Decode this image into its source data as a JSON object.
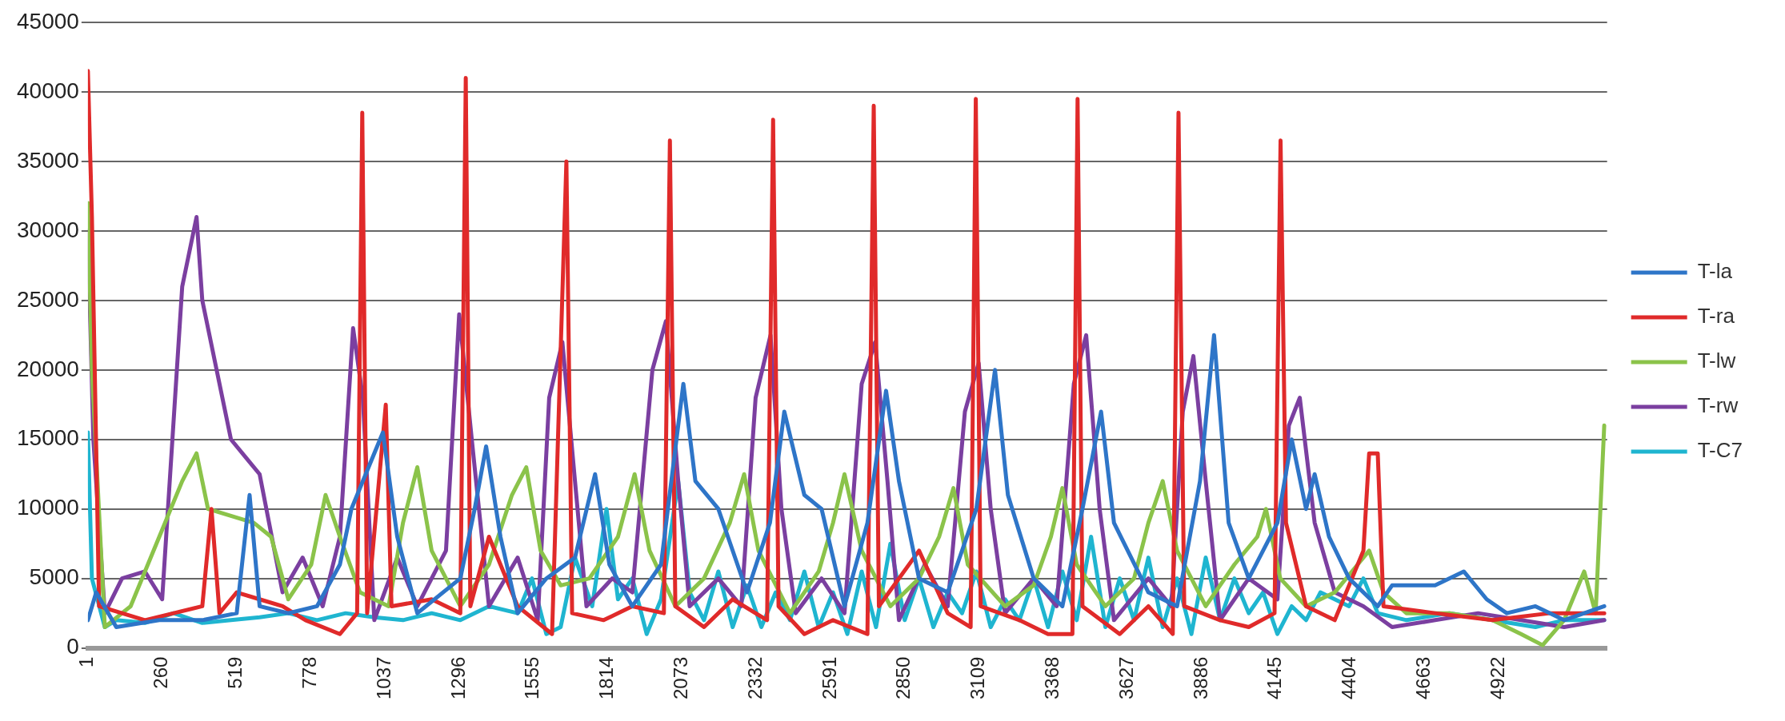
{
  "chart_data": {
    "type": "line",
    "xlim": [
      1,
      5300
    ],
    "xticks": [
      1,
      260,
      519,
      778,
      1037,
      1296,
      1555,
      1814,
      2073,
      2332,
      2591,
      2850,
      3109,
      3368,
      3627,
      3886,
      4145,
      4404,
      4663,
      4922
    ],
    "ylim": [
      0,
      45000
    ],
    "yticks": [
      0,
      5000,
      10000,
      15000,
      20000,
      25000,
      30000,
      35000,
      40000,
      45000
    ],
    "grid": "y",
    "legend": "right",
    "marker": "none",
    "line_style": "solid",
    "series": [
      {
        "name": "T-la",
        "color": "#2e75c8",
        "x": [
          1,
          30,
          100,
          250,
          400,
          520,
          565,
          600,
          700,
          800,
          880,
          920,
          1030,
          1080,
          1150,
          1300,
          1350,
          1390,
          1440,
          1500,
          1600,
          1700,
          1770,
          1820,
          1900,
          2000,
          2078,
          2120,
          2200,
          2300,
          2380,
          2430,
          2500,
          2560,
          2640,
          2720,
          2785,
          2830,
          2900,
          3000,
          3100,
          3165,
          3210,
          3300,
          3400,
          3470,
          3535,
          3580,
          3700,
          3800,
          3880,
          3929,
          3980,
          4050,
          4150,
          4200,
          4250,
          4280,
          4330,
          4400,
          4500,
          4550,
          4700,
          4800,
          4880,
          4950,
          5050,
          5150,
          5290
        ],
        "values": [
          2000,
          4000,
          1500,
          2000,
          2000,
          2500,
          11000,
          3000,
          2500,
          3000,
          6000,
          10000,
          15500,
          8000,
          2500,
          5000,
          10000,
          14500,
          8000,
          2500,
          5000,
          6500,
          12500,
          6000,
          3000,
          6000,
          19000,
          12000,
          10000,
          4000,
          9000,
          17000,
          11000,
          10000,
          3000,
          9000,
          18500,
          12000,
          5000,
          4000,
          10000,
          20000,
          11000,
          5000,
          3000,
          10000,
          17000,
          9000,
          4000,
          3000,
          12000,
          22500,
          9000,
          5000,
          9000,
          15000,
          10000,
          12500,
          8000,
          5000,
          3000,
          4500,
          4500,
          5500,
          3500,
          2500,
          3000,
          2000,
          3000
        ]
      },
      {
        "name": "T-ra",
        "color": "#e02a2a",
        "x": [
          1,
          15,
          40,
          120,
          200,
          300,
          400,
          432,
          460,
          520,
          600,
          680,
          760,
          880,
          940,
          958,
          975,
          1040,
          1060,
          1200,
          1300,
          1319,
          1335,
          1400,
          1500,
          1620,
          1670,
          1690,
          1800,
          1900,
          2010,
          2031,
          2050,
          2150,
          2250,
          2370,
          2391,
          2410,
          2500,
          2600,
          2720,
          2742,
          2760,
          2900,
          3000,
          3080,
          3098,
          3115,
          3250,
          3350,
          3435,
          3453,
          3470,
          3600,
          3700,
          3785,
          3805,
          3825,
          3950,
          4050,
          4140,
          4161,
          4180,
          4250,
          4350,
          4450,
          4470,
          4500,
          4520,
          4700,
          4900,
          5100,
          5290
        ],
        "values": [
          41500,
          31000,
          3000,
          2500,
          2000,
          2500,
          3000,
          10000,
          2500,
          4000,
          3500,
          3000,
          2000,
          1000,
          2500,
          38500,
          2500,
          17500,
          3000,
          3500,
          2500,
          41000,
          3000,
          8000,
          3000,
          1000,
          35000,
          2500,
          2000,
          3000,
          2500,
          36500,
          3000,
          1500,
          3500,
          2000,
          38000,
          3000,
          1000,
          2000,
          1000,
          39000,
          3000,
          7000,
          2500,
          1500,
          39500,
          3000,
          2000,
          1000,
          1000,
          39500,
          3000,
          1000,
          3000,
          1000,
          38500,
          3000,
          2000,
          1500,
          2500,
          36500,
          9000,
          3000,
          2000,
          7000,
          14000,
          14000,
          3000,
          2500,
          2000,
          2500,
          2500
        ]
      },
      {
        "name": "T-lw",
        "color": "#8bc34a",
        "x": [
          1,
          15,
          60,
          150,
          250,
          330,
          380,
          420,
          500,
          580,
          640,
          700,
          780,
          830,
          880,
          950,
          1050,
          1100,
          1150,
          1200,
          1300,
          1400,
          1480,
          1530,
          1580,
          1650,
          1750,
          1850,
          1908,
          1960,
          2050,
          2150,
          2240,
          2290,
          2340,
          2450,
          2550,
          2600,
          2640,
          2700,
          2800,
          2900,
          2970,
          3020,
          3070,
          3200,
          3300,
          3360,
          3400,
          3450,
          3550,
          3650,
          3700,
          3750,
          3800,
          3900,
          4000,
          4080,
          4110,
          4160,
          4250,
          4350,
          4430,
          4470,
          4520,
          4600,
          4750,
          4900,
          5000,
          5075,
          5150,
          5220,
          5260,
          5290
        ],
        "values": [
          32000,
          20000,
          1500,
          3000,
          8000,
          12000,
          14000,
          10000,
          9500,
          9000,
          8000,
          3500,
          6000,
          11000,
          8000,
          4000,
          3000,
          9000,
          13000,
          7000,
          3000,
          6000,
          11000,
          13000,
          7000,
          4500,
          5000,
          8000,
          12500,
          7000,
          3000,
          5000,
          9000,
          12500,
          7000,
          2500,
          5500,
          9000,
          12500,
          7000,
          3000,
          5000,
          8000,
          11500,
          6000,
          3000,
          4500,
          8000,
          11500,
          6000,
          3000,
          5000,
          9000,
          12000,
          7000,
          3000,
          6000,
          8000,
          10000,
          5000,
          3000,
          4000,
          6000,
          7000,
          4000,
          2500,
          2500,
          2000,
          1000,
          200,
          2000,
          5500,
          2500,
          16000
        ]
      },
      {
        "name": "T-rw",
        "color": "#7b3fa0",
        "x": [
          1,
          20,
          60,
          120,
          200,
          260,
          330,
          380,
          400,
          450,
          500,
          560,
          600,
          680,
          750,
          820,
          880,
          926,
          960,
          1000,
          1080,
          1150,
          1250,
          1296,
          1340,
          1400,
          1500,
          1570,
          1610,
          1656,
          1700,
          1740,
          1830,
          1900,
          1970,
          2017,
          2060,
          2100,
          2200,
          2280,
          2330,
          2382,
          2420,
          2470,
          2560,
          2640,
          2700,
          2747,
          2790,
          2830,
          2920,
          3000,
          3060,
          3108,
          3150,
          3200,
          3300,
          3380,
          3440,
          3483,
          3530,
          3580,
          3700,
          3780,
          3820,
          3857,
          3900,
          3950,
          4050,
          4150,
          4190,
          4228,
          4280,
          4350,
          4450,
          4550,
          4700,
          4850,
          5000,
          5150,
          5290
        ],
        "values": [
          30000,
          15000,
          2500,
          5000,
          5500,
          3500,
          26000,
          31000,
          25000,
          20000,
          15000,
          13500,
          12500,
          4000,
          6500,
          3000,
          8000,
          23000,
          18000,
          2000,
          6500,
          3000,
          7000,
          24000,
          15000,
          3000,
          6500,
          2000,
          18000,
          22000,
          12000,
          3000,
          5000,
          4000,
          20000,
          23500,
          12000,
          3000,
          5000,
          3000,
          18000,
          22500,
          10000,
          2500,
          5000,
          2500,
          19000,
          22000,
          12000,
          2000,
          6000,
          3000,
          17000,
          20500,
          10000,
          2500,
          5000,
          3000,
          19000,
          22500,
          10000,
          2000,
          5000,
          3000,
          17000,
          21000,
          12000,
          2000,
          5000,
          3500,
          16000,
          18000,
          9000,
          4000,
          3000,
          1500,
          2000,
          2500,
          2000,
          1500,
          2000
        ]
      },
      {
        "name": "T-C7",
        "color": "#1fb5d0",
        "x": [
          1,
          15,
          60,
          100,
          200,
          300,
          400,
          500,
          600,
          700,
          800,
          900,
          1000,
          1100,
          1200,
          1300,
          1400,
          1500,
          1550,
          1600,
          1650,
          1700,
          1760,
          1810,
          1850,
          1900,
          1950,
          2000,
          2060,
          2100,
          2150,
          2200,
          2250,
          2300,
          2350,
          2400,
          2450,
          2500,
          2550,
          2600,
          2650,
          2700,
          2750,
          2800,
          2850,
          2900,
          2950,
          3000,
          3050,
          3100,
          3150,
          3200,
          3250,
          3300,
          3350,
          3400,
          3450,
          3500,
          3550,
          3600,
          3650,
          3700,
          3750,
          3800,
          3850,
          3900,
          3950,
          4000,
          4050,
          4100,
          4150,
          4200,
          4250,
          4300,
          4400,
          4450,
          4500,
          4600,
          4750,
          4900,
          5050,
          5150,
          5290
        ],
        "values": [
          15500,
          5000,
          1500,
          2000,
          1800,
          2500,
          1800,
          2000,
          2200,
          2500,
          2000,
          2500,
          2200,
          2000,
          2500,
          2000,
          3000,
          2500,
          5000,
          1000,
          1500,
          6500,
          3000,
          10000,
          3500,
          5000,
          1000,
          3500,
          12000,
          4000,
          2000,
          5500,
          1500,
          4500,
          1500,
          4000,
          2000,
          5500,
          1500,
          4000,
          1000,
          5500,
          1500,
          7500,
          2000,
          5000,
          1500,
          4000,
          2500,
          5500,
          1500,
          3500,
          2000,
          5000,
          1500,
          5500,
          2000,
          8000,
          1500,
          5000,
          2000,
          6500,
          1500,
          5000,
          1000,
          6500,
          2000,
          5000,
          2500,
          4000,
          1000,
          3000,
          2000,
          4000,
          3000,
          5000,
          2500,
          2000,
          2500,
          2000,
          1500,
          2000,
          2000
        ]
      }
    ]
  }
}
